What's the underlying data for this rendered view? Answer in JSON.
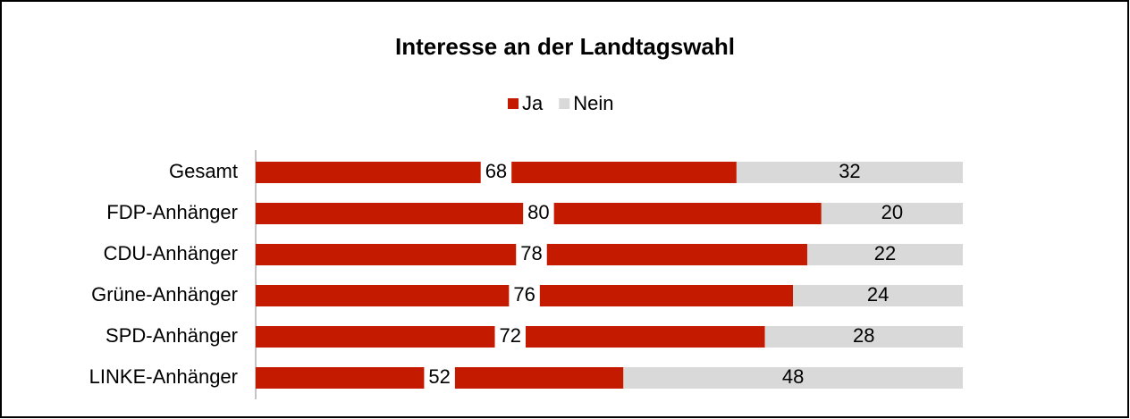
{
  "chart_data": {
    "type": "stacked-bar-horizontal",
    "title": "Interesse an der Landtagswahl",
    "categories": [
      "Gesamt",
      "FDP-Anhänger",
      "CDU-Anhänger",
      "Grüne-Anhänger",
      "SPD-Anhänger",
      "LINKE-Anhänger"
    ],
    "series": [
      {
        "name": "Ja",
        "color": "#c41a00",
        "values": [
          68,
          80,
          78,
          76,
          72,
          52
        ]
      },
      {
        "name": "Nein",
        "color": "#d9d9d9",
        "values": [
          32,
          20,
          22,
          24,
          28,
          48
        ]
      }
    ],
    "xlim": [
      0,
      100
    ],
    "legend": "top"
  }
}
